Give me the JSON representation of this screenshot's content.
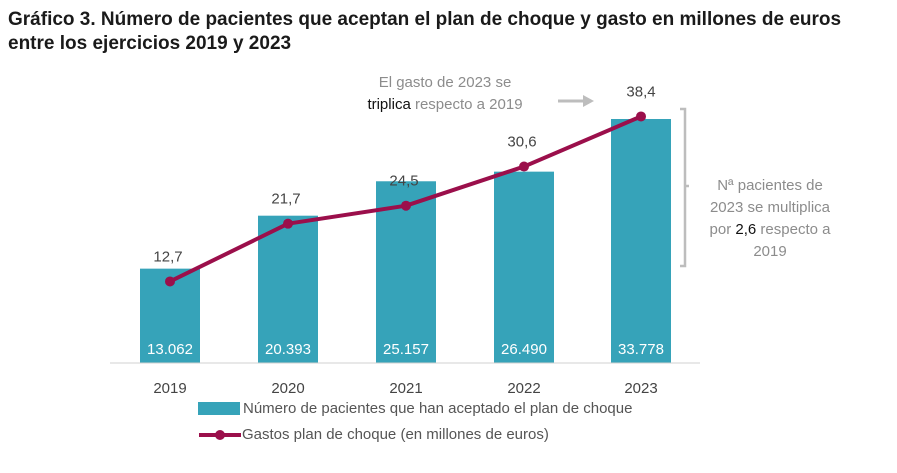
{
  "title": "Gráfico 3. Número de pacientes que aceptan el plan de choque y gasto en millones de euros entre los ejercicios 2019 y 2023",
  "annotations": {
    "gasto_line1": "El gasto de 2023 se",
    "gasto_bold": "triplica",
    "gasto_rest": " respecto a 2019",
    "pacientes_line1": "Nª pacientes de",
    "pacientes_line2": "2023 se multiplica",
    "pacientes_pre": "por ",
    "pacientes_bold": "2,6",
    "pacientes_post": " respecto a",
    "pacientes_line4": "2019"
  },
  "chart_data": {
    "type": "bar+line",
    "categories": [
      "2019",
      "2020",
      "2021",
      "2022",
      "2023"
    ],
    "series": [
      {
        "name": "Número de pacientes que han aceptado el plan de choque",
        "type": "bar",
        "values": [
          13062,
          20393,
          25157,
          26490,
          33778
        ],
        "labels": [
          "13.062",
          "20.393",
          "25.157",
          "26.490",
          "33.778"
        ],
        "color": "#36a3b9"
      },
      {
        "name": "Gastos plan de choque (en millones de euros)",
        "type": "line",
        "values": [
          12.7,
          21.7,
          24.5,
          30.6,
          38.4
        ],
        "labels": [
          "12,7",
          "21,7",
          "24,5",
          "30,6",
          "38,4"
        ],
        "color": "#9b0f4b"
      }
    ],
    "grid": false,
    "legend": "bottom"
  }
}
